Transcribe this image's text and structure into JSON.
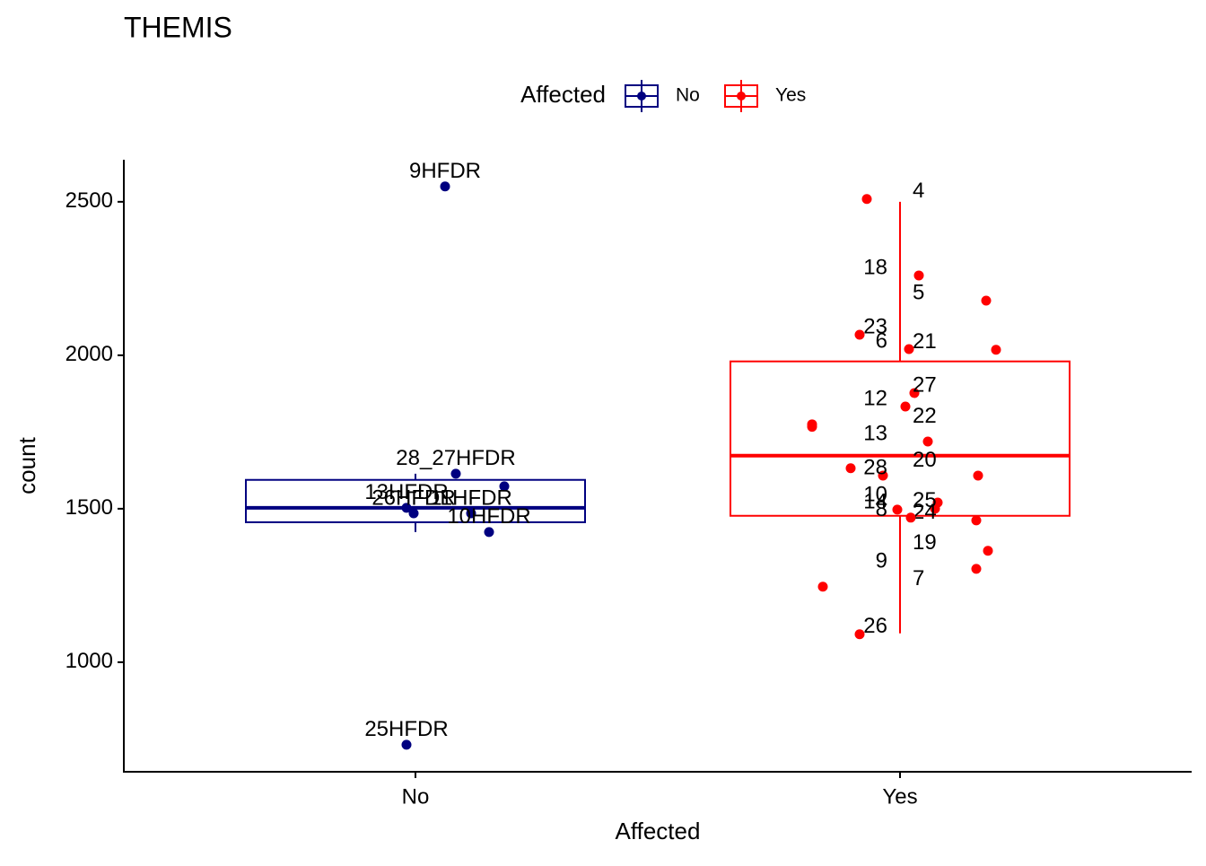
{
  "chart_data": {
    "type": "box",
    "title": "THEMIS",
    "x_label": "Affected",
    "y_label": "count",
    "legend_title": "Affected",
    "legend_position": "top",
    "categories": [
      "No",
      "Yes"
    ],
    "ylim": [
      643,
      2637
    ],
    "yticks": [
      1000,
      1500,
      2000,
      2500
    ],
    "series": [
      {
        "name": "No",
        "color": "#000080",
        "whislo": 1424,
        "q1": 1456,
        "median": 1503,
        "q3": 1594,
        "whishi": 1614,
        "points": [
          2550,
          1614,
          1573,
          1503,
          1485,
          1424,
          731,
          1485
        ],
        "point_labels": [
          "9HFDR",
          "28_27HFDR",
          null,
          "13HFDR",
          "11HFDR",
          "10HFDR",
          "25HFDR",
          "26HFDR"
        ]
      },
      {
        "name": "Yes",
        "color": "#ff0000",
        "whislo": 1094,
        "q1": 1477,
        "median": 1673,
        "q3": 1980,
        "whishi": 2500,
        "points": [
          2509,
          2260,
          2178,
          2067,
          2018,
          2020,
          1877,
          1833,
          1775,
          1719,
          1632,
          1608,
          1608,
          1520,
          1500,
          1497,
          1462,
          1471,
          1363,
          1304,
          1246,
          1091,
          1767
        ],
        "point_labels": [
          "4",
          "18",
          "5",
          "23",
          "21",
          "6",
          "27",
          "12",
          "22",
          "13",
          "20",
          "28",
          null,
          "10",
          "25",
          "14",
          "24",
          "8",
          "19",
          "9",
          "7",
          "26",
          null
        ]
      }
    ]
  }
}
